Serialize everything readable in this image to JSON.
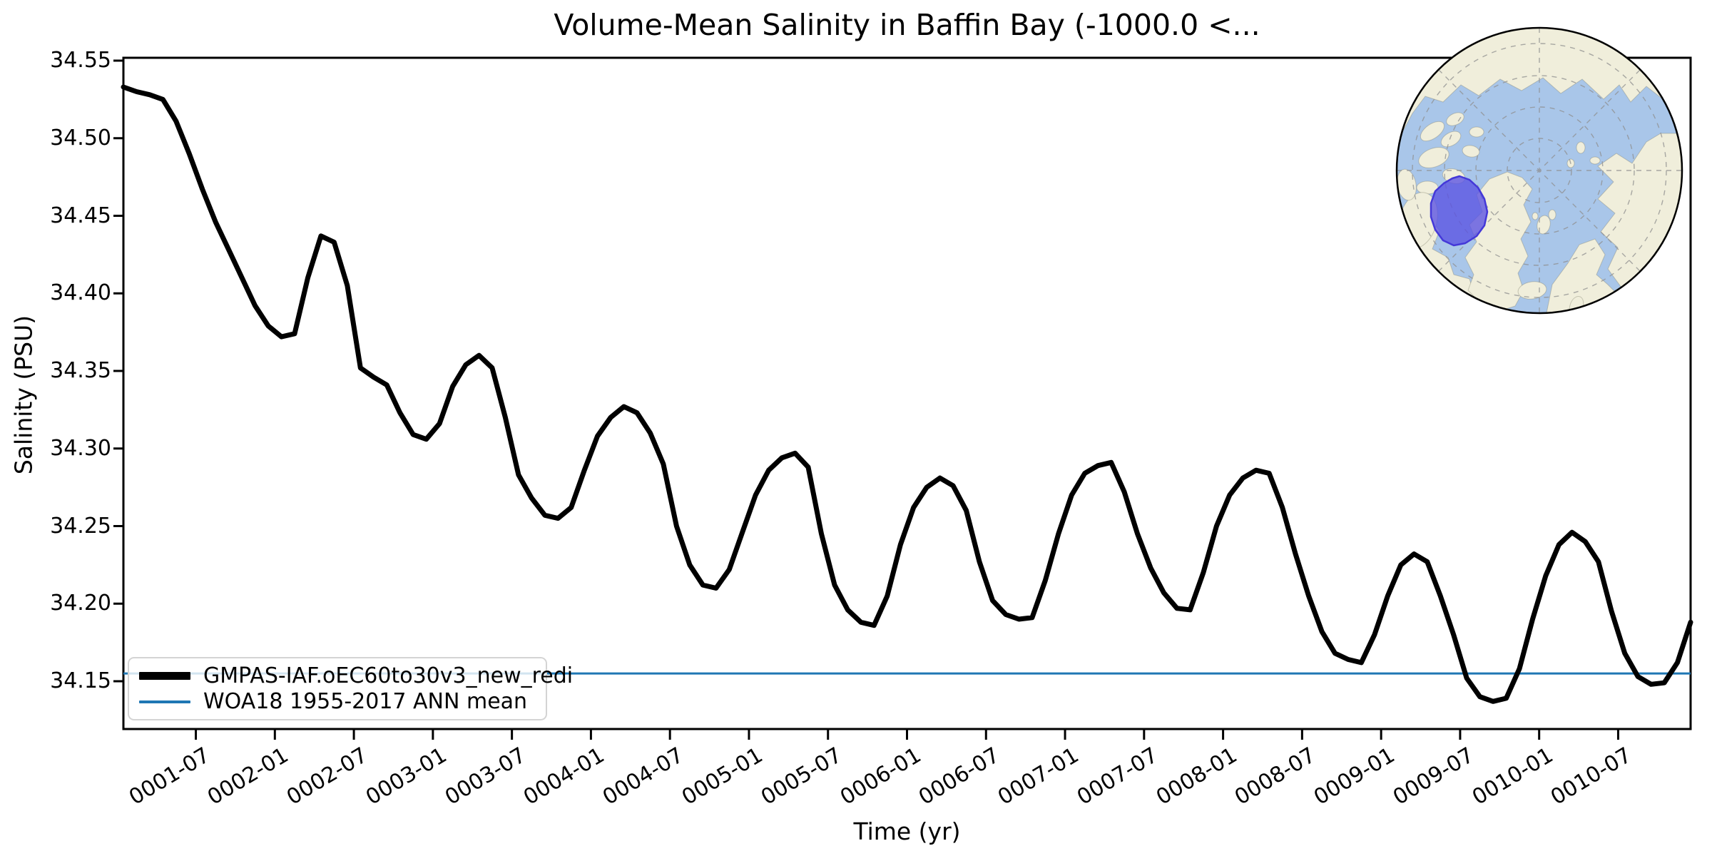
{
  "title": "Volume-Mean Salinity in Baffin Bay (-1000.0 <...",
  "axes": {
    "xlabel": "Time (yr)",
    "ylabel": "Salinity (PSU)",
    "y_tick_labels": [
      "34.55",
      "34.50",
      "34.45",
      "34.40",
      "34.35",
      "34.30",
      "34.25",
      "34.20",
      "34.15"
    ],
    "x_tick_labels": [
      "0001-07",
      "0002-01",
      "0002-07",
      "0003-01",
      "0003-07",
      "0004-01",
      "0004-07",
      "0005-01",
      "0005-07",
      "0006-01",
      "0006-07",
      "0007-01",
      "0007-07",
      "0008-01",
      "0008-07",
      "0009-01",
      "0009-07",
      "0010-01",
      "0010-07"
    ]
  },
  "legend": {
    "items": [
      {
        "label": "GMPAS-IAF.oEC60to30v3_new_redi",
        "color": "#000000"
      },
      {
        "label": "WOA18 1955-2017 ANN mean",
        "color": "#1f77b4"
      }
    ]
  },
  "colors": {
    "series": "#000000",
    "reference_line": "#1f77b4",
    "map_ocean": "#a9c6e9",
    "map_land": "#f0eedb",
    "map_highlight_fill": "#5a52e3",
    "map_highlight_edge": "#4438d8",
    "map_graticule": "#8f8f8f",
    "legend_border": "#d4d4d4"
  },
  "inset_map": {
    "highlight_region": "Baffin Bay"
  },
  "chart_data": {
    "type": "line",
    "title": "Volume-Mean Salinity in Baffin Bay (-1000.0 <...",
    "xlabel": "Time (yr)",
    "ylabel": "Salinity (PSU)",
    "x_start": "0001-01",
    "x_end": "0010-12",
    "frequency": "monthly",
    "n_points": 120,
    "ylim": [
      34.119,
      34.552
    ],
    "y_ticks": [
      34.55,
      34.5,
      34.45,
      34.4,
      34.35,
      34.3,
      34.25,
      34.2,
      34.15
    ],
    "x_tick_labels": [
      "0001-07",
      "0002-01",
      "0002-07",
      "0003-01",
      "0003-07",
      "0004-01",
      "0004-07",
      "0005-01",
      "0005-07",
      "0006-01",
      "0006-07",
      "0007-01",
      "0007-07",
      "0008-01",
      "0008-07",
      "0009-01",
      "0009-07",
      "0010-01",
      "0010-07"
    ],
    "grid": false,
    "legend_position": "lower left",
    "series": [
      {
        "name": "GMPAS-IAF.oEC60to30v3_new_redi",
        "type": "line",
        "color": "#000000",
        "values": [
          34.533,
          34.53,
          34.528,
          34.525,
          34.511,
          34.49,
          34.467,
          34.446,
          34.428,
          34.41,
          34.392,
          34.379,
          34.372,
          34.374,
          34.41,
          34.437,
          34.433,
          34.405,
          34.352,
          34.346,
          34.341,
          34.323,
          34.309,
          34.306,
          34.316,
          34.34,
          34.354,
          34.36,
          34.352,
          34.32,
          34.283,
          34.268,
          34.257,
          34.255,
          34.262,
          34.286,
          34.308,
          34.32,
          34.327,
          34.323,
          34.31,
          34.29,
          34.25,
          34.225,
          34.212,
          34.21,
          34.222,
          34.246,
          34.27,
          34.286,
          34.294,
          34.297,
          34.288,
          34.245,
          34.212,
          34.196,
          34.188,
          34.186,
          34.205,
          34.238,
          34.262,
          34.275,
          34.281,
          34.276,
          34.26,
          34.227,
          34.202,
          34.193,
          34.19,
          34.191,
          34.215,
          34.245,
          34.27,
          34.284,
          34.289,
          34.291,
          34.272,
          34.245,
          34.223,
          34.207,
          34.197,
          34.196,
          34.22,
          34.25,
          34.27,
          34.281,
          34.286,
          34.284,
          34.262,
          34.232,
          34.205,
          34.182,
          34.168,
          34.164,
          34.162,
          34.18,
          34.205,
          34.225,
          34.232,
          34.227,
          34.205,
          34.18,
          34.152,
          34.14,
          34.137,
          34.139,
          34.158,
          34.19,
          34.218,
          34.238,
          34.246,
          34.24,
          34.227,
          34.195,
          34.168,
          34.153,
          34.148,
          34.149,
          34.162,
          34.188
        ]
      },
      {
        "name": "WOA18 1955-2017 ANN mean",
        "type": "horizontal-line",
        "color": "#1f77b4",
        "value": 34.155
      }
    ]
  }
}
